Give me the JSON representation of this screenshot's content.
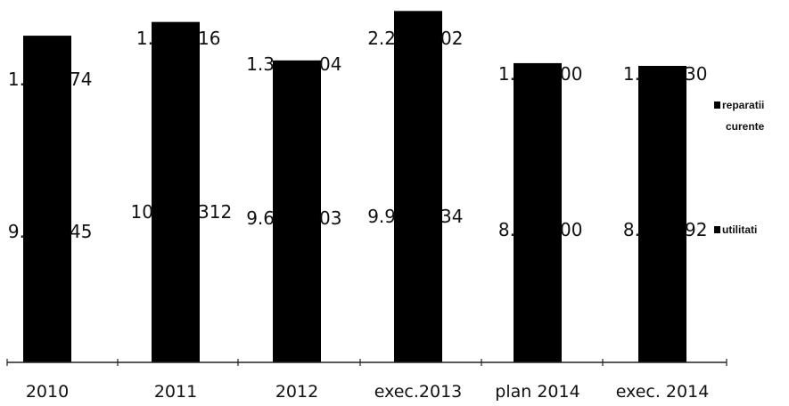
{
  "chart_data": {
    "type": "bar",
    "stacked": true,
    "categories": [
      "2010",
      "2011",
      "2012",
      "exec.2013",
      "plan 2014",
      "exec. 2014"
    ],
    "series": [
      {
        "name": "utilitati",
        "color": "#000000",
        "value_labels": [
          "9.",
          "45",
          "10",
          "312",
          "9.6",
          "03",
          "9.9",
          "34",
          "8.",
          "00",
          "8.",
          "92"
        ],
        "label_pairs": [
          [
            "9.",
            "45"
          ],
          [
            "10",
            "312"
          ],
          [
            "9.6",
            "03"
          ],
          [
            "9.9",
            "34"
          ],
          [
            "8.",
            "00"
          ],
          [
            "8.",
            "92"
          ]
        ]
      },
      {
        "name": "reparatii\ncurente",
        "color": "#000000",
        "label_pairs": [
          [
            "1.",
            "74"
          ],
          [
            "1.",
            "16"
          ],
          [
            "1.3",
            "04"
          ],
          [
            "2.2",
            "02"
          ],
          [
            "1.",
            "00"
          ],
          [
            "1.",
            "30"
          ]
        ]
      }
    ],
    "totals": [
      11.9,
      12.4,
      11.0,
      12.8,
      10.9,
      10.8
    ],
    "ylim": [
      0,
      13.2
    ],
    "legend": {
      "position": "right",
      "entries": [
        {
          "line1": "reparatii",
          "line2": "curente"
        },
        {
          "line1": "utilitati",
          "line2": ""
        }
      ]
    },
    "grid": false,
    "title": "",
    "xlabel": "",
    "ylabel": ""
  }
}
